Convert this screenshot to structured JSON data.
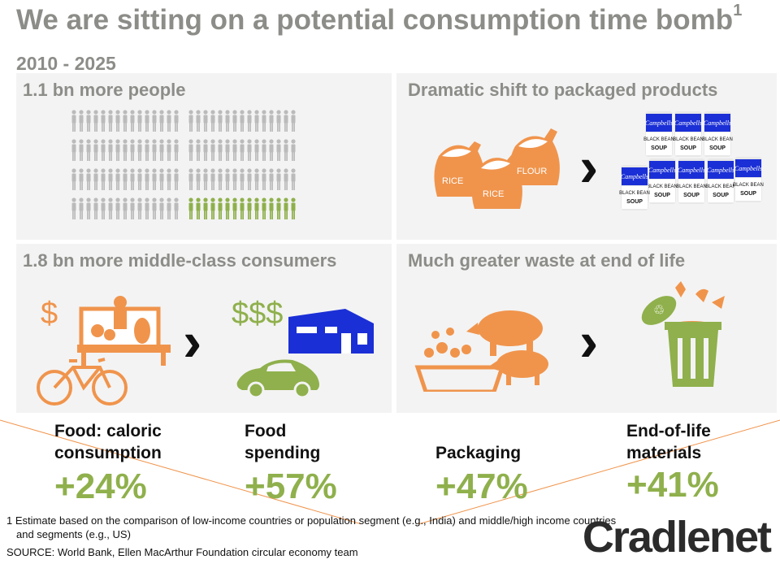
{
  "title": {
    "main": "We are sitting  on a potential consumption time bomb",
    "sup": "1",
    "years": "2010 - 2025"
  },
  "panels": {
    "people": {
      "title": "1.1 bn more people"
    },
    "packaged": {
      "title": "Dramatic shift to packaged products",
      "bags": [
        "RICE",
        "RICE",
        "FLOUR"
      ],
      "can_lines": [
        "Campbells",
        "BLACK BEAN",
        "SOUP"
      ]
    },
    "middle": {
      "title": "1.8 bn more middle-class consumers",
      "low": "$",
      "high": "$$$"
    },
    "waste": {
      "title": "Much greater waste at end of life"
    }
  },
  "stats": [
    {
      "label1": "Food: caloric",
      "label2": "consumption",
      "plus": "+",
      "value": "24%"
    },
    {
      "label1": "Food",
      "label2": "spending",
      "plus": "+",
      "value": "57%"
    },
    {
      "label1": "",
      "label2": "Packaging",
      "plus": "+",
      "value": "47%"
    },
    {
      "label1": "End-of-life",
      "label2": "materials",
      "plus": "+",
      "value": "41%"
    }
  ],
  "footnote": {
    "line1": "1 Estimate based on the comparison of low-income countries or population segment (e.g., India) and middle/high income countries",
    "line2": "and segments (e.g., US)",
    "source": "SOURCE: World Bank,  Ellen MacArthur Foundation circular economy team"
  },
  "logo": "Cradlenet",
  "colors": {
    "orange": "#f0944c",
    "green": "#8fb04c",
    "gray": "#bbbbbb",
    "blue": "#1b2fd6"
  }
}
